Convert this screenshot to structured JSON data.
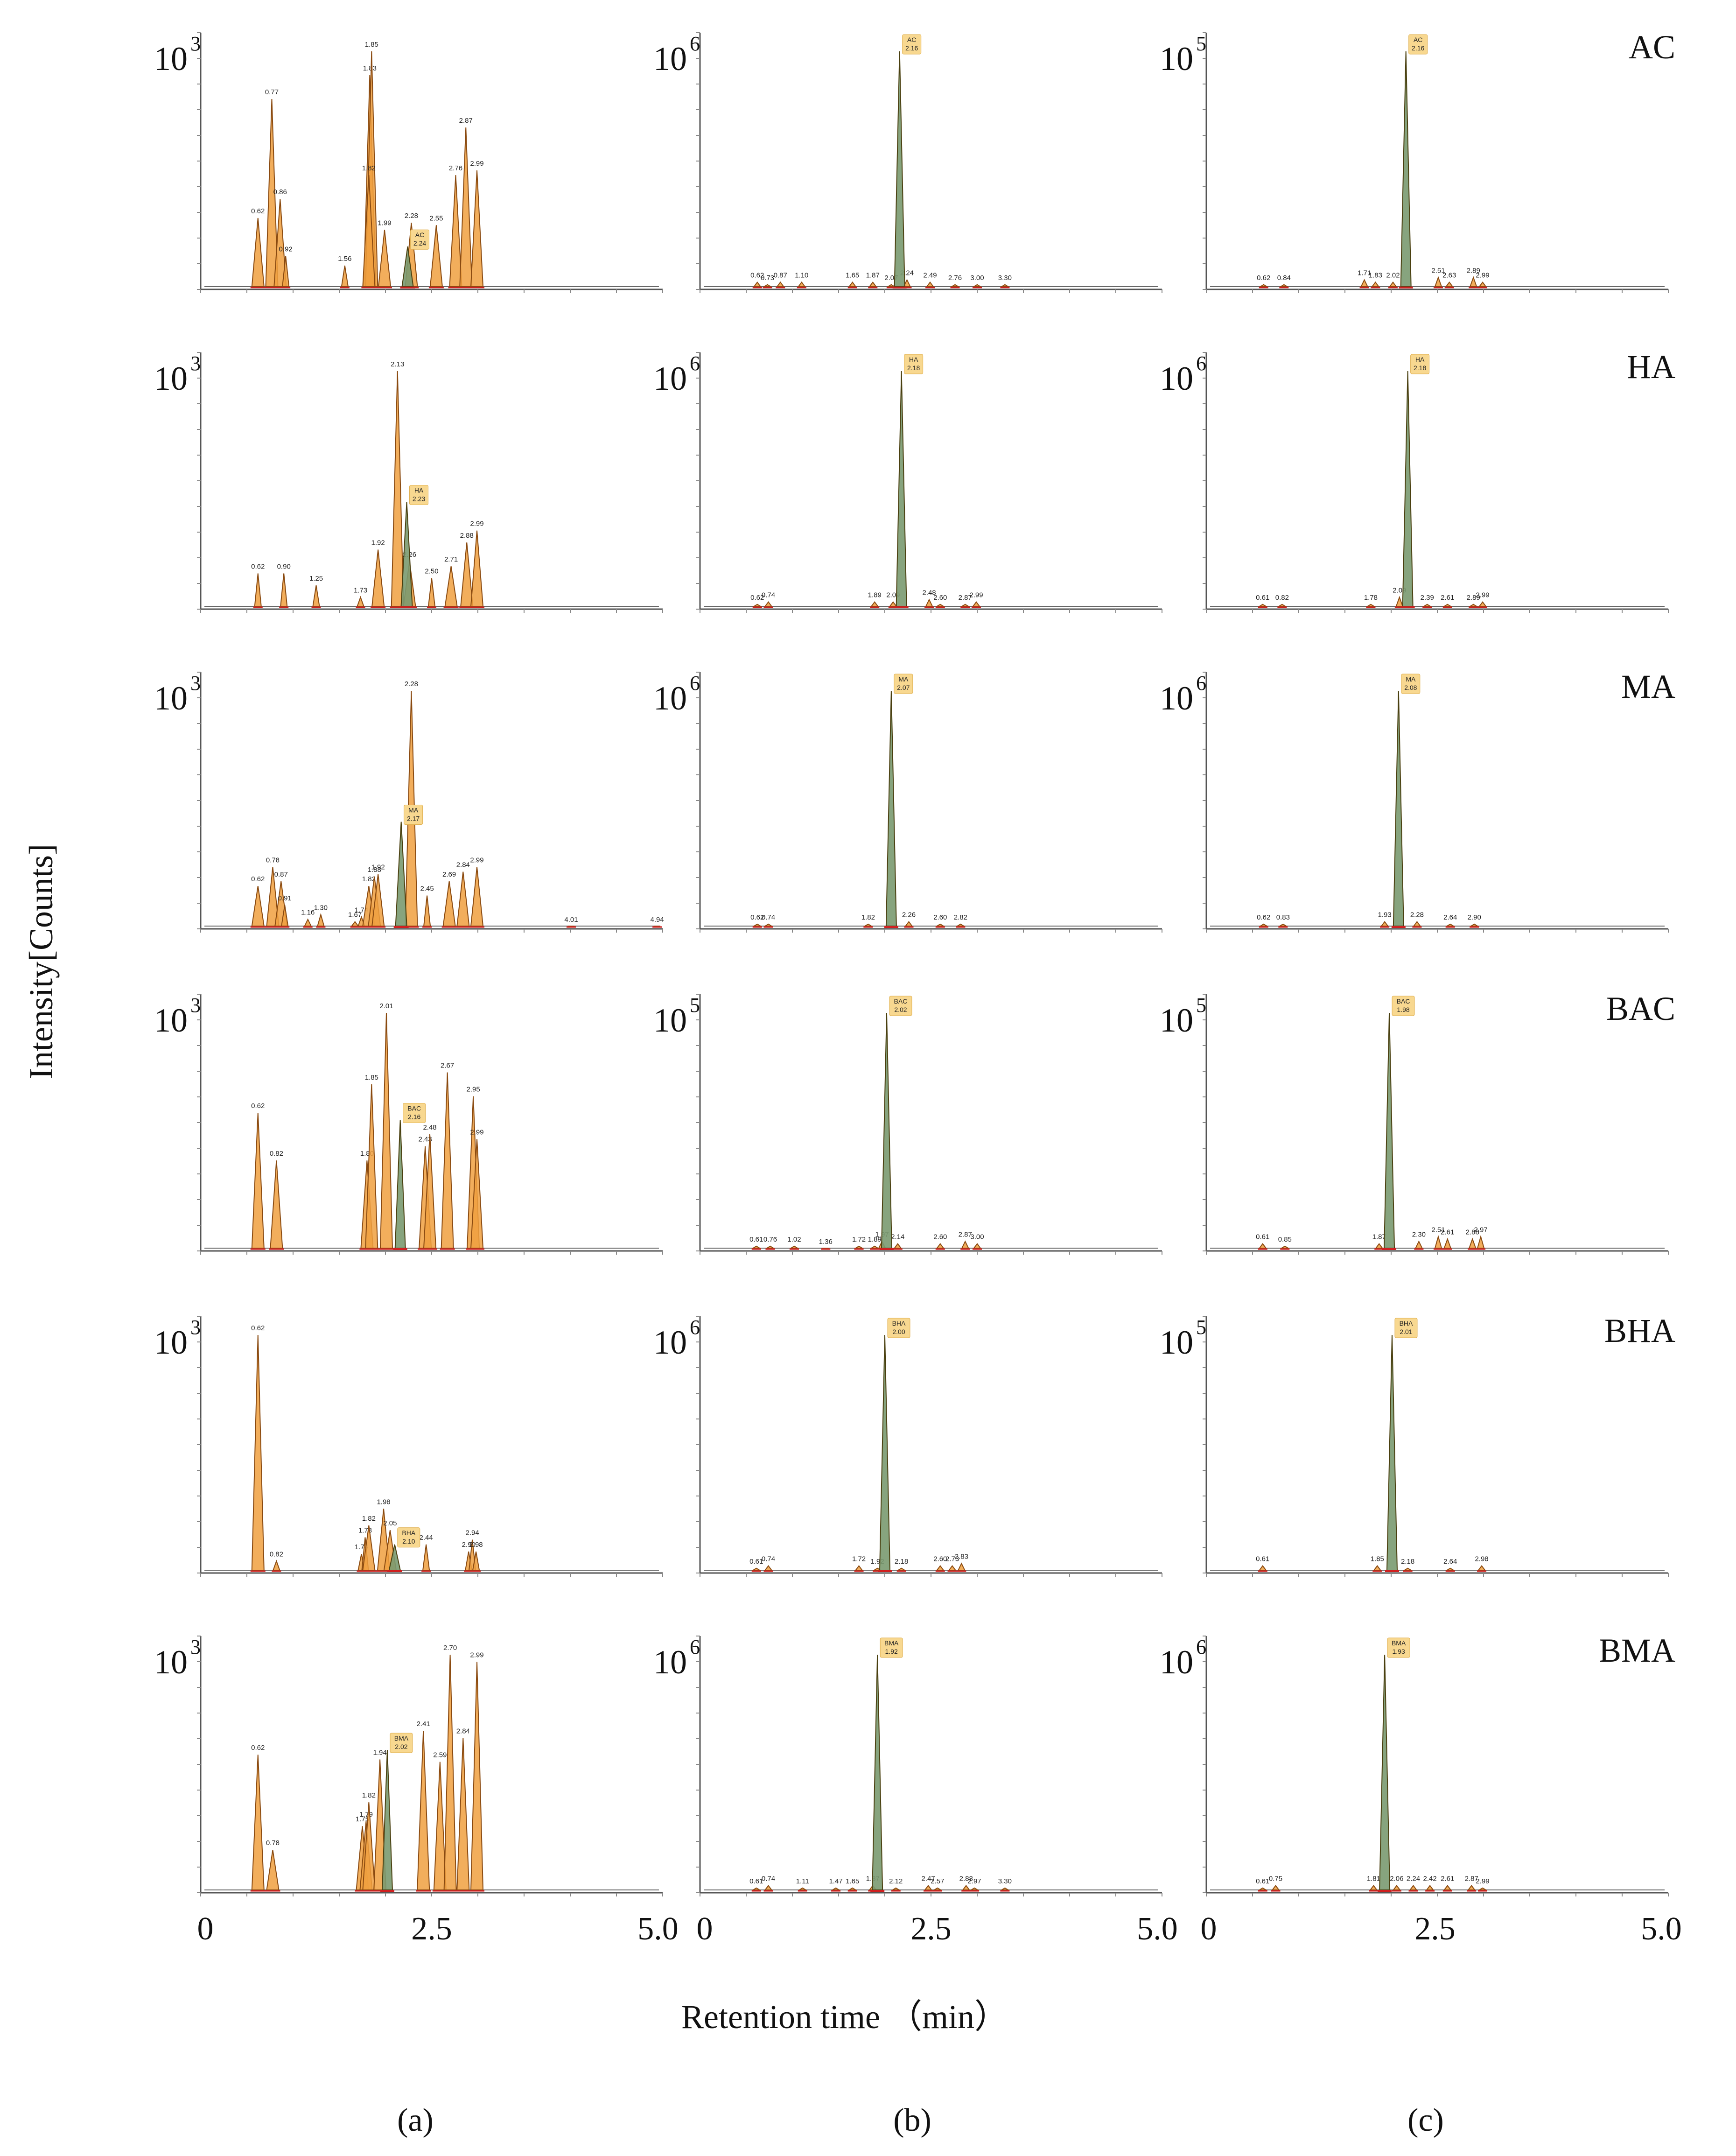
{
  "figure": {
    "ylabel": "Intensity[Counts]",
    "xlabel": "Retention time （min）",
    "xticks": [
      "0",
      "2.5",
      "5.0"
    ],
    "column_labels": [
      "(a)",
      "(b)",
      "(c)"
    ],
    "row_labels": [
      "AC",
      "HA",
      "MA",
      "BAC",
      "BHA",
      "BMA"
    ]
  },
  "chart_data": {
    "type": "line",
    "title": "",
    "xlabel": "Retention time （min）",
    "ylabel": "Intensity[Counts]",
    "xlim": [
      0,
      5.0
    ],
    "panels": [
      {
        "col": "a",
        "compound": "AC",
        "scale_label": "10",
        "scale_exp": "3",
        "target": {
          "label": "AC",
          "rt": "2.24",
          "height": 0.18
        },
        "peaks": [
          [
            "0.62",
            0.3
          ],
          [
            "0.77",
            0.8
          ],
          [
            "0.86",
            0.38
          ],
          [
            "0.92",
            0.14
          ],
          [
            "1.56",
            0.1
          ],
          [
            "1.83",
            0.9
          ],
          [
            "1.85",
            1.0
          ],
          [
            "1.82",
            0.48
          ],
          [
            "1.99",
            0.25
          ],
          [
            "2.28",
            0.28
          ],
          [
            "2.55",
            0.27
          ],
          [
            "2.76",
            0.48
          ],
          [
            "2.87",
            0.68
          ],
          [
            "2.99",
            0.5
          ]
        ]
      },
      {
        "col": "b",
        "compound": "AC",
        "scale_label": "10",
        "scale_exp": "6",
        "target": {
          "label": "AC",
          "rt": "2.16",
          "height": 1.0
        },
        "peaks": [
          [
            "0.62",
            0.03
          ],
          [
            "0.73",
            0.02
          ],
          [
            "0.87",
            0.03
          ],
          [
            "1.10",
            0.03
          ],
          [
            "1.65",
            0.03
          ],
          [
            "1.87",
            0.03
          ],
          [
            "2.07",
            0.02
          ],
          [
            "2.24",
            0.04
          ],
          [
            "2.49",
            0.03
          ],
          [
            "2.76",
            0.02
          ],
          [
            "3.00",
            0.02
          ],
          [
            "3.30",
            0.02
          ]
        ]
      },
      {
        "col": "c",
        "compound": "AC",
        "scale_label": "10",
        "scale_exp": "5",
        "target": {
          "label": "AC",
          "rt": "2.16",
          "height": 1.0
        },
        "peaks": [
          [
            "0.62",
            0.02
          ],
          [
            "0.84",
            0.02
          ],
          [
            "1.71",
            0.04
          ],
          [
            "1.83",
            0.03
          ],
          [
            "2.02",
            0.03
          ],
          [
            "2.51",
            0.05
          ],
          [
            "2.63",
            0.03
          ],
          [
            "2.89",
            0.05
          ],
          [
            "2.99",
            0.03
          ]
        ]
      },
      {
        "col": "a",
        "compound": "HA",
        "scale_label": "10",
        "scale_exp": "3",
        "target": {
          "label": "HA",
          "rt": "2.23",
          "height": 0.45
        },
        "peaks": [
          [
            "0.62",
            0.15
          ],
          [
            "0.90",
            0.15
          ],
          [
            "1.25",
            0.1
          ],
          [
            "1.73",
            0.05
          ],
          [
            "1.92",
            0.25
          ],
          [
            "2.13",
            1.0
          ],
          [
            "2.26",
            0.2
          ],
          [
            "2.50",
            0.13
          ],
          [
            "2.71",
            0.18
          ],
          [
            "2.88",
            0.28
          ],
          [
            "2.99",
            0.33
          ]
        ]
      },
      {
        "col": "b",
        "compound": "HA",
        "scale_label": "10",
        "scale_exp": "6",
        "target": {
          "label": "HA",
          "rt": "2.18",
          "height": 1.0
        },
        "peaks": [
          [
            "0.62",
            0.02
          ],
          [
            "0.74",
            0.03
          ],
          [
            "1.89",
            0.03
          ],
          [
            "2.09",
            0.03
          ],
          [
            "2.48",
            0.04
          ],
          [
            "2.60",
            0.02
          ],
          [
            "2.87",
            0.02
          ],
          [
            "2.99",
            0.03
          ]
        ]
      },
      {
        "col": "c",
        "compound": "HA",
        "scale_label": "10",
        "scale_exp": "6",
        "target": {
          "label": "HA",
          "rt": "2.18",
          "height": 1.0
        },
        "peaks": [
          [
            "0.61",
            0.02
          ],
          [
            "0.82",
            0.02
          ],
          [
            "1.78",
            0.02
          ],
          [
            "2.09",
            0.05
          ],
          [
            "2.39",
            0.02
          ],
          [
            "2.61",
            0.02
          ],
          [
            "2.89",
            0.02
          ],
          [
            "2.99",
            0.03
          ]
        ]
      },
      {
        "col": "a",
        "compound": "MA",
        "scale_label": "10",
        "scale_exp": "3",
        "target": {
          "label": "MA",
          "rt": "2.17",
          "height": 0.45
        },
        "peaks": [
          [
            "0.62",
            0.18
          ],
          [
            "0.78",
            0.26
          ],
          [
            "0.87",
            0.2
          ],
          [
            "0.91",
            0.1
          ],
          [
            "1.16",
            0.04
          ],
          [
            "1.30",
            0.06
          ],
          [
            "1.67",
            0.03
          ],
          [
            "1.74",
            0.05
          ],
          [
            "1.82",
            0.18
          ],
          [
            "1.88",
            0.22
          ],
          [
            "1.92",
            0.23
          ],
          [
            "2.28",
            1.0
          ],
          [
            "2.45",
            0.14
          ],
          [
            "2.69",
            0.2
          ],
          [
            "2.84",
            0.24
          ],
          [
            "2.99",
            0.26
          ],
          [
            "4.01",
            0.01
          ],
          [
            "4.94",
            0.01
          ]
        ]
      },
      {
        "col": "b",
        "compound": "MA",
        "scale_label": "10",
        "scale_exp": "6",
        "target": {
          "label": "MA",
          "rt": "2.07",
          "height": 1.0
        },
        "peaks": [
          [
            "0.62",
            0.02
          ],
          [
            "0.74",
            0.02
          ],
          [
            "1.82",
            0.02
          ],
          [
            "2.26",
            0.03
          ],
          [
            "2.60",
            0.02
          ],
          [
            "2.82",
            0.02
          ]
        ]
      },
      {
        "col": "c",
        "compound": "MA",
        "scale_label": "10",
        "scale_exp": "6",
        "target": {
          "label": "MA",
          "rt": "2.08",
          "height": 1.0
        },
        "peaks": [
          [
            "0.62",
            0.02
          ],
          [
            "0.83",
            0.02
          ],
          [
            "1.93",
            0.03
          ],
          [
            "2.28",
            0.03
          ],
          [
            "2.64",
            0.02
          ],
          [
            "2.90",
            0.02
          ]
        ]
      },
      {
        "col": "a",
        "compound": "BAC",
        "scale_label": "10",
        "scale_exp": "3",
        "target": {
          "label": "BAC",
          "rt": "2.16",
          "height": 0.55
        },
        "peaks": [
          [
            "0.62",
            0.58
          ],
          [
            "0.82",
            0.38
          ],
          [
            "1.80",
            0.38
          ],
          [
            "1.85",
            0.7
          ],
          [
            "2.01",
            1.0
          ],
          [
            "2.43",
            0.44
          ],
          [
            "2.48",
            0.49
          ],
          [
            "2.67",
            0.75
          ],
          [
            "2.95",
            0.65
          ],
          [
            "2.99",
            0.47
          ]
        ]
      },
      {
        "col": "b",
        "compound": "BAC",
        "scale_label": "10",
        "scale_exp": "5",
        "target": {
          "label": "BAC",
          "rt": "2.02",
          "height": 1.0
        },
        "peaks": [
          [
            "0.61",
            0.02
          ],
          [
            "0.76",
            0.02
          ],
          [
            "1.02",
            0.02
          ],
          [
            "1.36",
            0.01
          ],
          [
            "1.72",
            0.02
          ],
          [
            "1.89",
            0.02
          ],
          [
            "1.97",
            0.04
          ],
          [
            "2.14",
            0.03
          ],
          [
            "2.60",
            0.03
          ],
          [
            "2.87",
            0.04
          ],
          [
            "3.00",
            0.03
          ]
        ]
      },
      {
        "col": "c",
        "compound": "BAC",
        "scale_label": "10",
        "scale_exp": "5",
        "target": {
          "label": "BAC",
          "rt": "1.98",
          "height": 1.0
        },
        "peaks": [
          [
            "0.61",
            0.03
          ],
          [
            "0.85",
            0.02
          ],
          [
            "1.87",
            0.03
          ],
          [
            "2.30",
            0.04
          ],
          [
            "2.51",
            0.06
          ],
          [
            "2.61",
            0.05
          ],
          [
            "2.88",
            0.05
          ],
          [
            "2.97",
            0.06
          ]
        ]
      },
      {
        "col": "a",
        "compound": "BHA",
        "scale_label": "10",
        "scale_exp": "3",
        "target": {
          "label": "BHA",
          "rt": "2.10",
          "height": 0.12
        },
        "peaks": [
          [
            "0.62",
            1.0
          ],
          [
            "0.82",
            0.05
          ],
          [
            "1.74",
            0.08
          ],
          [
            "1.78",
            0.15
          ],
          [
            "1.82",
            0.2
          ],
          [
            "1.98",
            0.27
          ],
          [
            "2.05",
            0.18
          ],
          [
            "2.44",
            0.12
          ],
          [
            "2.90",
            0.09
          ],
          [
            "2.94",
            0.14
          ],
          [
            "2.98",
            0.09
          ]
        ]
      },
      {
        "col": "b",
        "compound": "BHA",
        "scale_label": "10",
        "scale_exp": "6",
        "target": {
          "label": "BHA",
          "rt": "2.00",
          "height": 1.0
        },
        "peaks": [
          [
            "0.61",
            0.02
          ],
          [
            "0.74",
            0.03
          ],
          [
            "1.72",
            0.03
          ],
          [
            "1.92",
            0.02
          ],
          [
            "2.18",
            0.02
          ],
          [
            "2.60",
            0.03
          ],
          [
            "2.73",
            0.03
          ],
          [
            "2.83",
            0.04
          ]
        ]
      },
      {
        "col": "c",
        "compound": "BHA",
        "scale_label": "10",
        "scale_exp": "5",
        "target": {
          "label": "BHA",
          "rt": "2.01",
          "height": 1.0
        },
        "peaks": [
          [
            "0.61",
            0.03
          ],
          [
            "1.85",
            0.03
          ],
          [
            "2.18",
            0.02
          ],
          [
            "2.64",
            0.02
          ],
          [
            "2.98",
            0.03
          ]
        ]
      },
      {
        "col": "a",
        "compound": "BMA",
        "scale_label": "10",
        "scale_exp": "3",
        "target": {
          "label": "BMA",
          "rt": "2.02",
          "height": 0.6
        },
        "peaks": [
          [
            "0.62",
            0.58
          ],
          [
            "0.78",
            0.18
          ],
          [
            "1.75",
            0.28
          ],
          [
            "1.79",
            0.3
          ],
          [
            "1.82",
            0.38
          ],
          [
            "1.94",
            0.56
          ],
          [
            "2.41",
            0.68
          ],
          [
            "2.59",
            0.55
          ],
          [
            "2.70",
            1.0
          ],
          [
            "2.84",
            0.65
          ],
          [
            "2.99",
            0.97
          ]
        ]
      },
      {
        "col": "b",
        "compound": "BMA",
        "scale_label": "10",
        "scale_exp": "6",
        "target": {
          "label": "BMA",
          "rt": "1.92",
          "height": 1.0
        },
        "peaks": [
          [
            "0.61",
            0.02
          ],
          [
            "0.74",
            0.03
          ],
          [
            "1.11",
            0.02
          ],
          [
            "1.47",
            0.02
          ],
          [
            "1.65",
            0.02
          ],
          [
            "1.87",
            0.03
          ],
          [
            "2.12",
            0.02
          ],
          [
            "2.47",
            0.03
          ],
          [
            "2.57",
            0.02
          ],
          [
            "2.88",
            0.03
          ],
          [
            "2.97",
            0.02
          ],
          [
            "3.30",
            0.02
          ]
        ]
      },
      {
        "col": "c",
        "compound": "BMA",
        "scale_label": "10",
        "scale_exp": "6",
        "target": {
          "label": "BMA",
          "rt": "1.93",
          "height": 1.0
        },
        "peaks": [
          [
            "0.61",
            0.02
          ],
          [
            "0.75",
            0.03
          ],
          [
            "1.81",
            0.03
          ],
          [
            "2.06",
            0.03
          ],
          [
            "2.24",
            0.03
          ],
          [
            "2.42",
            0.03
          ],
          [
            "2.61",
            0.03
          ],
          [
            "2.87",
            0.03
          ],
          [
            "2.99",
            0.02
          ]
        ]
      }
    ]
  }
}
